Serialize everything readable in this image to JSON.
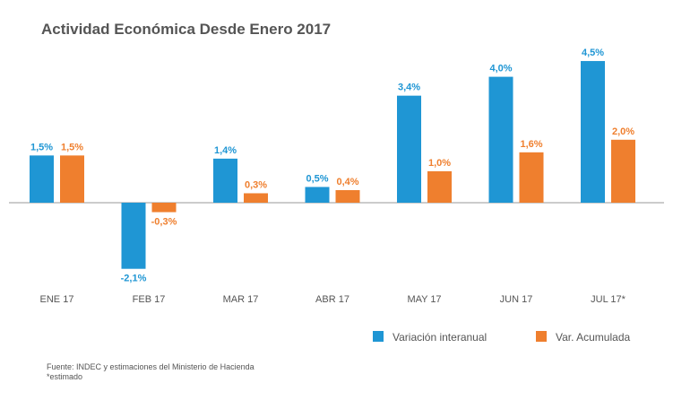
{
  "chart_data": {
    "type": "bar",
    "title": "Actividad Económica Desde Enero 2017",
    "categories": [
      "ENE 17",
      "FEB 17",
      "MAR 17",
      "ABR 17",
      "MAY 17",
      "JUN 17",
      "JUL 17*"
    ],
    "series": [
      {
        "name": "Variación interanual",
        "color": "#1f96d4",
        "values": [
          1.5,
          -2.1,
          1.4,
          0.5,
          3.4,
          4.0,
          4.5
        ],
        "labels": [
          "1,5%",
          "-2,1%",
          "1,4%",
          "0,5%",
          "3,4%",
          "4,0%",
          "4,5%"
        ]
      },
      {
        "name": "Var. Acumulada",
        "color": "#ef7f2e",
        "values": [
          1.5,
          -0.3,
          0.3,
          0.4,
          1.0,
          1.6,
          2.0
        ],
        "labels": [
          "1,5%",
          "-0,3%",
          "0,3%",
          "0,4%",
          "1,0%",
          "1,6%",
          "2,0%"
        ]
      }
    ],
    "ylim": [
      -2.1,
      4.5
    ],
    "grid": false,
    "legend_position": "bottom-right"
  },
  "footer": {
    "source": "Fuente: INDEC y estimaciones del Ministerio de Hacienda",
    "note": "*estimado"
  }
}
